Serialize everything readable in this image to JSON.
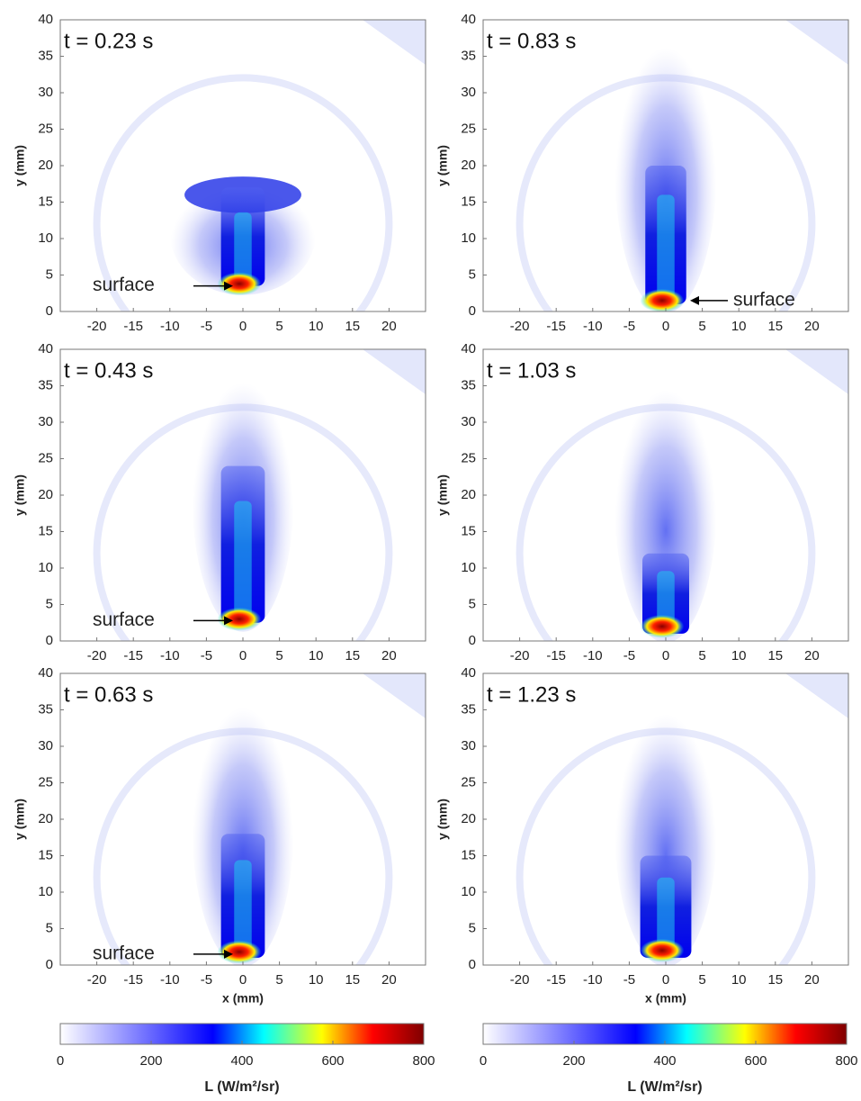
{
  "chart_data": [
    {
      "type": "heatmap",
      "title": "t = 0.23 s",
      "xlim": [
        -25,
        25
      ],
      "ylim": [
        0,
        40
      ],
      "xticks": [
        -20,
        -15,
        -10,
        -5,
        0,
        5,
        10,
        15,
        20
      ],
      "yticks": [
        0,
        5,
        10,
        15,
        20,
        25,
        30,
        35,
        40
      ],
      "ylabel": "y (mm)",
      "annotation": "surface"
    },
    {
      "type": "heatmap",
      "title": "t = 0.83 s",
      "xlim": [
        -25,
        25
      ],
      "ylim": [
        0,
        40
      ],
      "xticks": [
        -20,
        -15,
        -10,
        -5,
        0,
        5,
        10,
        15,
        20
      ],
      "yticks": [
        0,
        5,
        10,
        15,
        20,
        25,
        30,
        35,
        40
      ],
      "ylabel": "y (mm)",
      "annotation": "surface"
    },
    {
      "type": "heatmap",
      "title": "t = 0.43 s",
      "xlim": [
        -25,
        25
      ],
      "ylim": [
        0,
        40
      ],
      "xticks": [
        -20,
        -15,
        -10,
        -5,
        0,
        5,
        10,
        15,
        20
      ],
      "yticks": [
        0,
        5,
        10,
        15,
        20,
        25,
        30,
        35,
        40
      ],
      "ylabel": "y (mm)",
      "annotation": "surface"
    },
    {
      "type": "heatmap",
      "title": "t = 1.03 s",
      "xlim": [
        -25,
        25
      ],
      "ylim": [
        0,
        40
      ],
      "xticks": [
        -20,
        -15,
        -10,
        -5,
        0,
        5,
        10,
        15,
        20
      ],
      "yticks": [
        0,
        5,
        10,
        15,
        20,
        25,
        30,
        35,
        40
      ],
      "ylabel": "y (mm)"
    },
    {
      "type": "heatmap",
      "title": "t = 0.63 s",
      "xlim": [
        -25,
        25
      ],
      "ylim": [
        0,
        40
      ],
      "xticks": [
        -20,
        -15,
        -10,
        -5,
        0,
        5,
        10,
        15,
        20
      ],
      "yticks": [
        0,
        5,
        10,
        15,
        20,
        25,
        30,
        35,
        40
      ],
      "ylabel": "y (mm)",
      "xlabel": "x (mm)",
      "annotation": "surface"
    },
    {
      "type": "heatmap",
      "title": "t = 1.23 s",
      "xlim": [
        -25,
        25
      ],
      "ylim": [
        0,
        40
      ],
      "xticks": [
        -20,
        -15,
        -10,
        -5,
        0,
        5,
        10,
        15,
        20
      ],
      "yticks": [
        0,
        5,
        10,
        15,
        20,
        25,
        30,
        35,
        40
      ],
      "ylabel": "y (mm)",
      "xlabel": "x (mm)"
    },
    {
      "type": "colorbar",
      "xlim": [
        0,
        800
      ],
      "xticks": [
        0,
        200,
        400,
        600,
        800
      ],
      "xlabel": "L (W/m²/sr)",
      "colors": [
        "#ffffff",
        "#0000ff",
        "#00ffff",
        "#ffff00",
        "#ff0000",
        "#7f0000"
      ]
    },
    {
      "type": "colorbar",
      "xlim": [
        0,
        800
      ],
      "xticks": [
        0,
        200,
        400,
        600,
        800
      ],
      "xlabel": "L (W/m²/sr)",
      "colors": [
        "#ffffff",
        "#0000ff",
        "#00ffff",
        "#ffff00",
        "#ff0000",
        "#7f0000"
      ]
    }
  ]
}
